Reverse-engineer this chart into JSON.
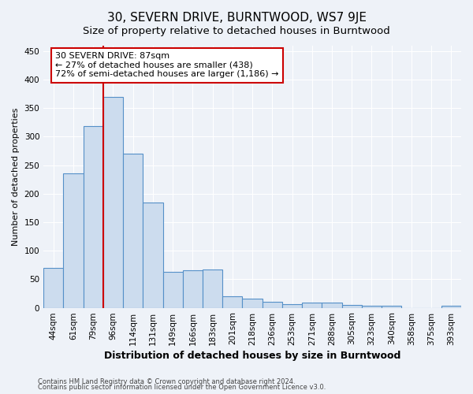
{
  "title": "30, SEVERN DRIVE, BURNTWOOD, WS7 9JE",
  "subtitle": "Size of property relative to detached houses in Burntwood",
  "xlabel": "Distribution of detached houses by size in Burntwood",
  "ylabel": "Number of detached properties",
  "footnote1": "Contains HM Land Registry data © Crown copyright and database right 2024.",
  "footnote2": "Contains public sector information licensed under the Open Government Licence v3.0.",
  "categories": [
    "44sqm",
    "61sqm",
    "79sqm",
    "96sqm",
    "114sqm",
    "131sqm",
    "149sqm",
    "166sqm",
    "183sqm",
    "201sqm",
    "218sqm",
    "236sqm",
    "253sqm",
    "271sqm",
    "288sqm",
    "305sqm",
    "323sqm",
    "340sqm",
    "358sqm",
    "375sqm",
    "393sqm"
  ],
  "values": [
    70,
    235,
    318,
    370,
    270,
    184,
    63,
    66,
    67,
    20,
    16,
    10,
    7,
    9,
    9,
    5,
    3,
    3,
    0,
    0,
    3
  ],
  "bar_color": "#ccdcee",
  "bar_edge_color": "#5590c8",
  "vline_x_index": 2,
  "vline_color": "#cc0000",
  "annotation_line1": "30 SEVERN DRIVE: 87sqm",
  "annotation_line2": "← 27% of detached houses are smaller (438)",
  "annotation_line3": "72% of semi-detached houses are larger (1,186) →",
  "annotation_box_color": "white",
  "annotation_box_edge_color": "#cc0000",
  "ylim": [
    0,
    460
  ],
  "yticks": [
    0,
    50,
    100,
    150,
    200,
    250,
    300,
    350,
    400,
    450
  ],
  "title_fontsize": 11,
  "subtitle_fontsize": 9.5,
  "xlabel_fontsize": 9,
  "ylabel_fontsize": 8,
  "tick_fontsize": 7.5,
  "annotation_fontsize": 8,
  "footnote_fontsize": 6,
  "background_color": "#eef2f8",
  "grid_color": "#ffffff"
}
